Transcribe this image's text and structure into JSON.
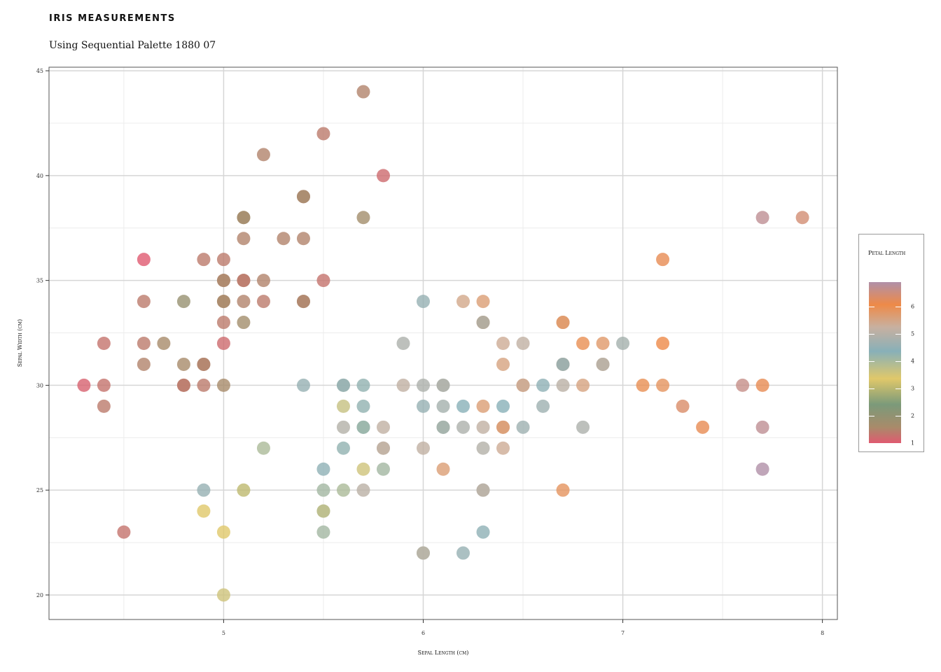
{
  "chart_data": {
    "type": "scatter",
    "title": "IRIS MEASUREMENTS",
    "subtitle": "Using Sequential Palette 1880⁡ 07",
    "xlabel": "Sepal Length (cm)",
    "ylabel": "Sepal Width (cm)",
    "xlim": [
      4.125,
      8.075
    ],
    "ylim": [
      1.883,
      4.517
    ],
    "xticks": [
      5,
      6,
      7,
      8
    ],
    "yticks": [
      2.0,
      2.5,
      3.0,
      3.5,
      4.0,
      4.5
    ],
    "xtick_labels": [
      "5",
      "6",
      "7",
      "8"
    ],
    "ytick_labels": [
      "20",
      "25",
      "30",
      "35",
      "40",
      "45"
    ],
    "grid": true,
    "color_variable": "Petal Length",
    "legend": {
      "title": "Petal Length",
      "placement": "right",
      "range": [
        1,
        6.9
      ],
      "tick_values": [
        1,
        2,
        3,
        4,
        5,
        6
      ],
      "tick_labels": [
        "1",
        "2",
        "3",
        "4",
        "5",
        "6"
      ]
    },
    "points": [
      [
        5.7,
        4.4,
        1.5
      ],
      [
        5.5,
        4.2,
        1.4
      ],
      [
        5.2,
        4.1,
        1.5
      ],
      [
        5.8,
        4.0,
        1.2
      ],
      [
        5.4,
        3.9,
        1.3
      ],
      [
        5.4,
        3.9,
        1.7
      ],
      [
        5.1,
        3.8,
        1.9
      ],
      [
        5.1,
        3.8,
        1.6
      ],
      [
        5.7,
        3.8,
        1.7
      ],
      [
        7.7,
        3.8,
        6.7
      ],
      [
        7.9,
        3.8,
        6.4
      ],
      [
        5.1,
        3.7,
        1.5
      ],
      [
        5.3,
        3.7,
        1.5
      ],
      [
        5.4,
        3.7,
        1.5
      ],
      [
        7.2,
        3.6,
        6.1
      ],
      [
        4.6,
        3.6,
        1.0
      ],
      [
        4.9,
        3.6,
        1.4
      ],
      [
        5.0,
        3.6,
        1.4
      ],
      [
        5.0,
        3.5,
        1.3
      ],
      [
        5.0,
        3.5,
        1.6
      ],
      [
        5.1,
        3.5,
        1.4
      ],
      [
        5.1,
        3.5,
        1.4
      ],
      [
        5.2,
        3.5,
        1.5
      ],
      [
        5.5,
        3.5,
        1.3
      ],
      [
        4.6,
        3.4,
        1.4
      ],
      [
        4.8,
        3.4,
        1.9
      ],
      [
        5.0,
        3.4,
        1.5
      ],
      [
        5.0,
        3.4,
        1.6
      ],
      [
        5.1,
        3.4,
        1.5
      ],
      [
        5.2,
        3.4,
        1.4
      ],
      [
        5.4,
        3.4,
        1.7
      ],
      [
        5.4,
        3.4,
        1.5
      ],
      [
        6.0,
        3.4,
        4.5
      ],
      [
        6.2,
        3.4,
        5.4
      ],
      [
        6.3,
        3.4,
        5.6
      ],
      [
        5.0,
        3.3,
        1.4
      ],
      [
        5.1,
        3.3,
        1.7
      ],
      [
        6.3,
        3.3,
        6.0
      ],
      [
        6.3,
        3.3,
        4.7
      ],
      [
        6.7,
        3.3,
        5.7
      ],
      [
        6.7,
        3.3,
        5.7
      ],
      [
        4.4,
        3.2,
        1.3
      ],
      [
        4.6,
        3.2,
        1.4
      ],
      [
        4.7,
        3.2,
        1.6
      ],
      [
        5.0,
        3.2,
        1.2
      ],
      [
        5.9,
        3.2,
        4.8
      ],
      [
        6.4,
        3.2,
        5.3
      ],
      [
        6.5,
        3.2,
        5.1
      ],
      [
        6.8,
        3.2,
        5.9
      ],
      [
        6.9,
        3.2,
        5.7
      ],
      [
        7.0,
        3.2,
        4.7
      ],
      [
        7.2,
        3.2,
        6.0
      ],
      [
        4.6,
        3.1,
        1.5
      ],
      [
        4.8,
        3.1,
        1.6
      ],
      [
        4.9,
        3.1,
        1.5
      ],
      [
        4.9,
        3.1,
        1.5
      ],
      [
        6.4,
        3.1,
        5.5
      ],
      [
        6.7,
        3.1,
        5.6
      ],
      [
        6.7,
        3.1,
        4.4
      ],
      [
        6.9,
        3.1,
        5.4
      ],
      [
        6.9,
        3.1,
        4.9
      ],
      [
        4.3,
        3.0,
        1.1
      ],
      [
        4.4,
        3.0,
        1.3
      ],
      [
        4.8,
        3.0,
        1.4
      ],
      [
        4.8,
        3.0,
        1.4
      ],
      [
        4.9,
        3.0,
        1.4
      ],
      [
        5.0,
        3.0,
        1.6
      ],
      [
        5.4,
        3.0,
        4.5
      ],
      [
        5.6,
        3.0,
        4.1
      ],
      [
        5.6,
        3.0,
        4.5
      ],
      [
        5.7,
        3.0,
        4.2
      ],
      [
        5.9,
        3.0,
        5.1
      ],
      [
        6.0,
        3.0,
        4.8
      ],
      [
        6.1,
        3.0,
        4.6
      ],
      [
        6.1,
        3.0,
        4.9
      ],
      [
        6.5,
        3.0,
        5.5
      ],
      [
        6.5,
        3.0,
        5.8
      ],
      [
        6.5,
        3.0,
        5.2
      ],
      [
        6.6,
        3.0,
        4.4
      ],
      [
        6.7,
        3.0,
        5.0
      ],
      [
        6.8,
        3.0,
        5.5
      ],
      [
        7.1,
        3.0,
        5.9
      ],
      [
        7.2,
        3.0,
        5.8
      ],
      [
        7.6,
        3.0,
        6.6
      ],
      [
        7.7,
        3.0,
        6.1
      ],
      [
        4.4,
        2.9,
        1.4
      ],
      [
        5.6,
        2.9,
        3.6
      ],
      [
        5.7,
        2.9,
        4.2
      ],
      [
        6.0,
        2.9,
        4.5
      ],
      [
        6.1,
        2.9,
        4.7
      ],
      [
        6.2,
        2.9,
        4.3
      ],
      [
        6.3,
        2.9,
        5.6
      ],
      [
        6.4,
        2.9,
        4.3
      ],
      [
        6.6,
        2.9,
        4.6
      ],
      [
        7.3,
        2.9,
        6.3
      ],
      [
        5.6,
        2.8,
        4.9
      ],
      [
        5.7,
        2.8,
        4.5
      ],
      [
        5.7,
        2.8,
        4.1
      ],
      [
        5.8,
        2.8,
        5.1
      ],
      [
        6.1,
        2.8,
        4.0
      ],
      [
        6.1,
        2.8,
        4.7
      ],
      [
        6.2,
        2.8,
        4.8
      ],
      [
        6.3,
        2.8,
        5.1
      ],
      [
        6.4,
        2.8,
        5.6
      ],
      [
        6.4,
        2.8,
        5.6
      ],
      [
        6.5,
        2.8,
        4.6
      ],
      [
        6.8,
        2.8,
        4.8
      ],
      [
        7.4,
        2.8,
        6.1
      ],
      [
        7.7,
        2.8,
        6.7
      ],
      [
        5.2,
        2.7,
        3.9
      ],
      [
        5.6,
        2.7,
        4.2
      ],
      [
        5.8,
        2.7,
        5.1
      ],
      [
        5.8,
        2.7,
        5.1
      ],
      [
        6.0,
        2.7,
        5.1
      ],
      [
        6.3,
        2.7,
        4.9
      ],
      [
        6.4,
        2.7,
        5.3
      ],
      [
        5.5,
        2.6,
        4.4
      ],
      [
        5.7,
        2.6,
        3.5
      ],
      [
        5.8,
        2.6,
        4.0
      ],
      [
        6.1,
        2.6,
        5.6
      ],
      [
        7.7,
        2.6,
        6.9
      ],
      [
        4.9,
        2.5,
        4.5
      ],
      [
        5.1,
        2.5,
        3.0
      ],
      [
        5.5,
        2.5,
        4.0
      ],
      [
        5.6,
        2.5,
        3.9
      ],
      [
        5.7,
        2.5,
        5.0
      ],
      [
        6.3,
        2.5,
        4.9
      ],
      [
        6.3,
        2.5,
        5.0
      ],
      [
        6.7,
        2.5,
        5.8
      ],
      [
        4.9,
        2.4,
        3.3
      ],
      [
        5.5,
        2.4,
        3.8
      ],
      [
        5.5,
        2.4,
        3.7
      ],
      [
        4.5,
        2.3,
        1.3
      ],
      [
        5.0,
        2.3,
        3.3
      ],
      [
        5.5,
        2.3,
        4.0
      ],
      [
        6.3,
        2.3,
        4.4
      ],
      [
        6.0,
        2.2,
        4.0
      ],
      [
        6.0,
        2.2,
        5.0
      ],
      [
        6.2,
        2.2,
        4.5
      ],
      [
        5.0,
        2.0,
        3.5
      ]
    ],
    "palette": {
      "stops": [
        "#e05a70",
        "#a88b6a",
        "#7b9a7a",
        "#e0c86a",
        "#88b0b8",
        "#c8b0a0",
        "#ee8a48",
        "#b090a8"
      ],
      "stop_values": [
        1.0,
        1.6,
        2.4,
        3.3,
        4.3,
        5.2,
        6.0,
        6.9
      ]
    }
  }
}
